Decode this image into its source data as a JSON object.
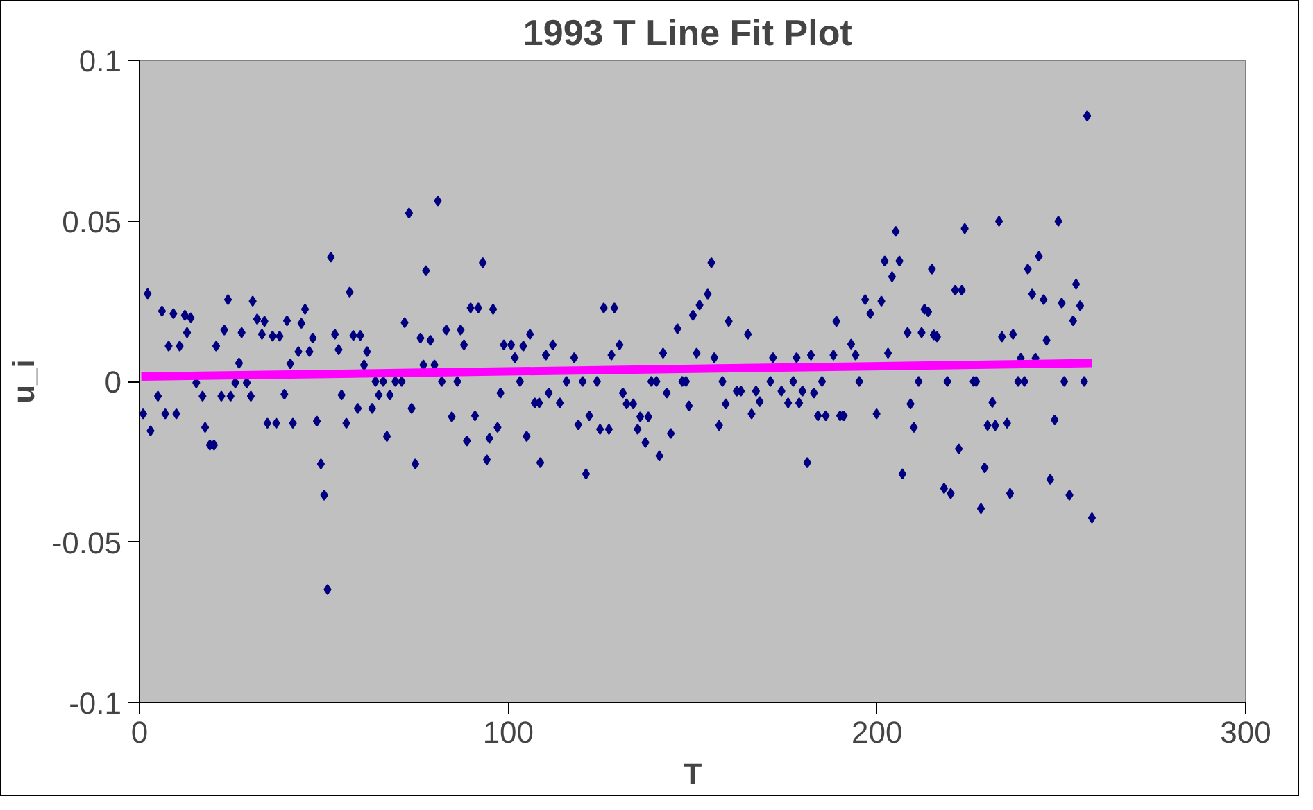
{
  "chart_data": {
    "type": "scatter",
    "title": "1993 T Line Fit  Plot",
    "xlabel": "T",
    "ylabel": "u_i",
    "xlim": [
      0,
      300
    ],
    "xticks": [
      0,
      100,
      200,
      300
    ],
    "ylim": [
      -0.1,
      0.1
    ],
    "yticks": [
      -0.1,
      -0.05,
      0,
      0.05,
      0.1
    ],
    "grid": false,
    "marker": "diamond",
    "series": [
      {
        "color": "#000080",
        "x": [
          1.0,
          2.2,
          3.0,
          5.0,
          6.1,
          7.0,
          7.9,
          9.2,
          10.0,
          10.9,
          12.3,
          12.9,
          13.9,
          15.4,
          17.1,
          17.8,
          19.1,
          20.2,
          20.8,
          22.2,
          23.0,
          24.0,
          24.7,
          26.0,
          27.0,
          27.7,
          29.1,
          30.2,
          30.7,
          31.9,
          33.2,
          33.9,
          34.7,
          36.1,
          37.1,
          38.0,
          39.3,
          40.0,
          40.9,
          41.6,
          43.1,
          43.9,
          44.9,
          46.1,
          47.0,
          48.1,
          49.2,
          50.1,
          51.0,
          51.9,
          53.0,
          54.0,
          54.8,
          56.1,
          57.0,
          58.0,
          59.2,
          59.9,
          60.9,
          61.7,
          63.1,
          64.0,
          64.9,
          66.1,
          67.1,
          67.9,
          69.4,
          71.1,
          71.9,
          73.1,
          73.8,
          74.8,
          76.2,
          77.0,
          77.7,
          78.9,
          80.0,
          80.9,
          82.0,
          83.2,
          84.7,
          86.2,
          87.1,
          88.0,
          88.8,
          89.8,
          91.0,
          91.9,
          93.1,
          94.2,
          94.9,
          95.9,
          97.1,
          97.9,
          98.8,
          100.8,
          101.8,
          103.2,
          104.1,
          105.0,
          105.9,
          107.2,
          108.4,
          108.7,
          110.2,
          111.0,
          112.1,
          114.0,
          115.8,
          117.9,
          119.0,
          120.2,
          121.1,
          122.0,
          124.1,
          124.9,
          125.9,
          127.3,
          128.0,
          128.8,
          130.2,
          131.1,
          132.1,
          133.9,
          135.1,
          135.8,
          137.2,
          138.0,
          138.8,
          140.2,
          141.0,
          142.0,
          143.0,
          144.1,
          145.9,
          147.2,
          148.2,
          149.0,
          150.1,
          151.1,
          151.9,
          154.1,
          155.1,
          155.9,
          157.2,
          158.1,
          159.0,
          159.8,
          162.0,
          163.1,
          165.0,
          166.0,
          167.2,
          168.2,
          171.1,
          171.8,
          174.1,
          175.9,
          177.3,
          178.2,
          178.9,
          179.8,
          181.1,
          182.1,
          182.9,
          184.0,
          185.1,
          186.1,
          188.2,
          189.0,
          190.0,
          191.0,
          193.0,
          194.2,
          195.2,
          196.8,
          198.2,
          199.9,
          201.2,
          202.1,
          203.0,
          204.1,
          205.1,
          206.1,
          206.9,
          208.3,
          209.1,
          210.0,
          211.3,
          212.1,
          212.9,
          213.9,
          214.9,
          215.4,
          216.3,
          218.2,
          219.1,
          220.0,
          221.2,
          222.2,
          223.0,
          223.8,
          226.2,
          226.9,
          228.2,
          229.2,
          230.0,
          231.3,
          232.1,
          233.1,
          233.9,
          235.3,
          236.1,
          236.9,
          238.3,
          239.0,
          240.0,
          240.9,
          242.1,
          243.0,
          243.9,
          245.2,
          246.0,
          247.0,
          248.2,
          249.2,
          250.1,
          250.8,
          252.2,
          253.2,
          254.0,
          255.1,
          256.2,
          257.0,
          258.3
        ],
        "values": [
          -0.0101,
          0.0273,
          -0.0154,
          -0.0046,
          0.0219,
          -0.0101,
          0.011,
          0.0211,
          -0.0101,
          0.011,
          0.0206,
          0.0152,
          0.0198,
          -0.0004,
          -0.0046,
          -0.0143,
          -0.0198,
          -0.0198,
          0.011,
          -0.0046,
          0.016,
          0.0255,
          -0.0046,
          -0.0004,
          0.0057,
          0.0152,
          -0.0004,
          -0.0046,
          0.025,
          0.0194,
          0.0147,
          0.0187,
          -0.013,
          0.0141,
          -0.013,
          0.0141,
          -0.004,
          0.0189,
          0.0055,
          -0.013,
          0.0093,
          0.0181,
          0.0225,
          0.0093,
          0.0135,
          -0.0124,
          -0.0257,
          -0.0354,
          -0.0648,
          0.0387,
          0.0147,
          0.0099,
          -0.0042,
          -0.013,
          0.0278,
          0.0143,
          -0.0084,
          0.0143,
          0.0051,
          0.0093,
          -0.0084,
          0.0,
          -0.0042,
          0.0,
          -0.0171,
          -0.0042,
          0.0,
          0.0,
          0.0183,
          0.0524,
          -0.0084,
          -0.0257,
          0.0135,
          0.0051,
          0.0345,
          0.0128,
          0.0051,
          0.0562,
          0.0,
          0.016,
          -0.011,
          0.0,
          0.016,
          0.0114,
          -0.0185,
          0.0229,
          -0.0107,
          0.0229,
          0.037,
          -0.0244,
          -0.0177,
          0.0225,
          -0.0143,
          -0.0036,
          0.0114,
          0.0114,
          0.0074,
          0.0,
          0.011,
          -0.0171,
          0.0147,
          -0.0067,
          -0.0067,
          -0.0253,
          0.0082,
          -0.0036,
          0.0114,
          -0.0067,
          0.0,
          0.0074,
          -0.0135,
          0.0,
          -0.0288,
          -0.0107,
          0.0,
          -0.0149,
          0.0229,
          -0.0149,
          0.0082,
          0.0229,
          0.0114,
          -0.0036,
          -0.007,
          -0.007,
          -0.0149,
          -0.011,
          -0.019,
          -0.011,
          0.0,
          0.0,
          -0.0232,
          0.0088,
          -0.0036,
          -0.0162,
          0.0164,
          0.0,
          0.0,
          -0.0076,
          0.0206,
          0.0088,
          0.0238,
          0.0272,
          0.037,
          0.0074,
          -0.0137,
          0.0,
          -0.007,
          0.0187,
          -0.003,
          -0.003,
          0.0147,
          -0.0101,
          -0.003,
          -0.0063,
          0.0,
          0.0074,
          -0.003,
          -0.0067,
          0.0,
          0.0074,
          -0.0067,
          -0.003,
          -0.0253,
          0.0082,
          -0.0036,
          -0.0107,
          0.0,
          -0.0107,
          0.0082,
          0.0187,
          -0.0107,
          -0.0107,
          0.0116,
          0.0082,
          0.0,
          0.0255,
          0.0211,
          -0.0101,
          0.025,
          0.0375,
          0.0088,
          0.0326,
          0.0467,
          0.0375,
          -0.0288,
          0.0152,
          -0.007,
          -0.0143,
          0.0,
          0.0152,
          0.0225,
          0.0217,
          0.035,
          0.0145,
          0.0139,
          -0.0333,
          0.0,
          -0.0349,
          0.0284,
          -0.021,
          0.0284,
          0.0476,
          0.0,
          0.0,
          -0.0396,
          -0.0269,
          -0.0137,
          -0.0065,
          -0.0137,
          0.0499,
          0.0139,
          -0.013,
          -0.0349,
          0.0147,
          0.0,
          0.0072,
          0.0,
          0.035,
          0.0272,
          0.0072,
          0.039,
          0.0255,
          0.0128,
          -0.0305,
          -0.012,
          0.0499,
          0.0244,
          0.0,
          -0.0354,
          0.0189,
          0.0303,
          0.0236,
          0.0,
          0.0827,
          -0.0425
        ]
      },
      {
        "type": "line",
        "color": "#ff00ff",
        "marker": "none",
        "x": [
          0.5,
          258.3
        ],
        "values": [
          0.0015,
          0.0057
        ]
      }
    ]
  }
}
